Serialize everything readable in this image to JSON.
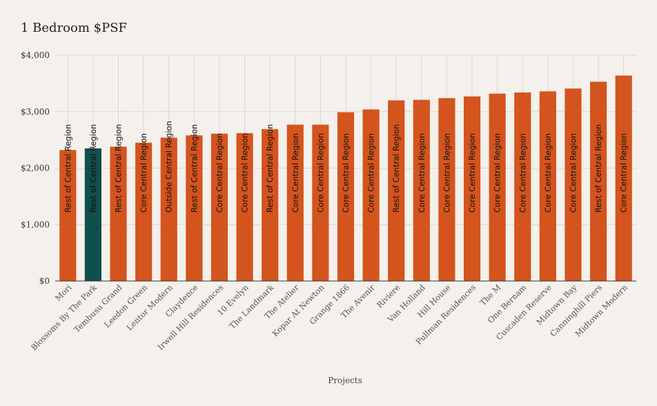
{
  "chart_data": {
    "type": "bar",
    "title": "1 Bedroom $PSF",
    "xlabel": "Projects",
    "ylabel": "",
    "ylim": [
      0,
      4000
    ],
    "yticks": [
      0,
      1000,
      2000,
      3000,
      4000
    ],
    "ytick_labels": [
      "$0",
      "$1,000",
      "$2,000",
      "$3,000",
      "$4,000"
    ],
    "grid": true,
    "colors": {
      "default": "#d4541e",
      "highlight": "#0f4f4c",
      "background": "#f4f0eb",
      "grid": "#dcd6cf"
    },
    "highlight_index": 1,
    "categories": [
      "Mori",
      "Blossoms By The Park",
      "Tembusu Grand",
      "Leedon Green",
      "Lentor Modern",
      "Claydence",
      "Irwell Hill Residences",
      "10 Evelyn",
      "The Landmark",
      "The Atelier",
      "Kopar At Newton",
      "Grange 1866",
      "The Avenir",
      "Riviere",
      "Van Holland",
      "Hill House",
      "Pullman Residences",
      "The M",
      "One Bernam",
      "Cuscaden Reserve",
      "Midtown Bay",
      "Canninghill Piers",
      "Midtown Modern"
    ],
    "values": [
      2320,
      2350,
      2380,
      2450,
      2540,
      2580,
      2610,
      2620,
      2690,
      2770,
      2770,
      2990,
      3040,
      3200,
      3210,
      3240,
      3270,
      3320,
      3340,
      3360,
      3410,
      3530,
      3640
    ],
    "labels": [
      "Rest of Central Region",
      "Rest of Central Region",
      "Rest of Central Region",
      "Core Central Region",
      "Outside Central Region",
      "Rest of Central Region",
      "Core Central Region",
      "Core Central Region",
      "Rest of Central Region",
      "Core Central Region",
      "Core Central Region",
      "Core Central Region",
      "Core Central Region",
      "Rest of Central Region",
      "Core Central Region",
      "Core Central Region",
      "Core Central Region",
      "Core Central Region",
      "Core Central Region",
      "Core Central Region",
      "Core Central Region",
      "Rest of Central Region",
      "Core Central Region"
    ]
  }
}
